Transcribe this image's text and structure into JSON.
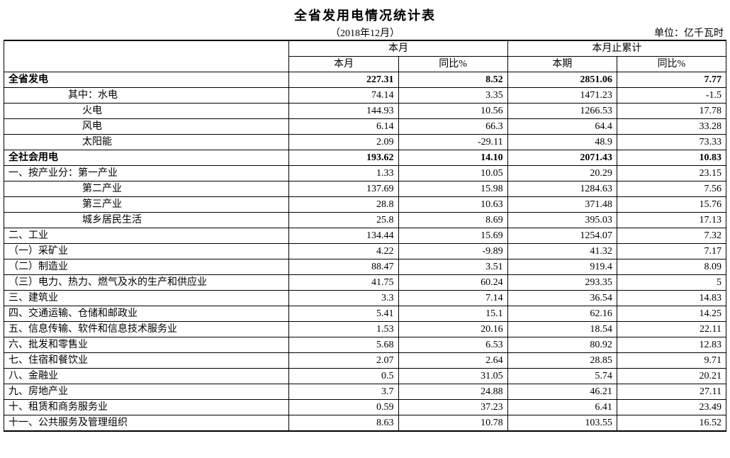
{
  "title": "全省发用电情况统计表",
  "date": "（2018年12月）",
  "unit": "单位：亿千瓦时",
  "headers": {
    "blank": "",
    "group1": "本月",
    "group2": "本月止累计",
    "c1": "本月",
    "c2": "同比%",
    "c3": "本期",
    "c4": "同比%"
  },
  "rows": [
    {
      "label": "全省发电",
      "cls": "bold",
      "indent": "",
      "v": [
        "227.31",
        "8.52",
        "2851.06",
        "7.77"
      ],
      "bv": [
        true,
        true,
        true,
        true
      ]
    },
    {
      "label": "其中：水电",
      "indent": "indent1",
      "v": [
        "74.14",
        "3.35",
        "1471.23",
        "-1.5"
      ]
    },
    {
      "label": "火电",
      "indent": "indent2",
      "v": [
        "144.93",
        "10.56",
        "1266.53",
        "17.78"
      ]
    },
    {
      "label": "风电",
      "indent": "indent2",
      "v": [
        "6.14",
        "66.3",
        "64.4",
        "33.28"
      ]
    },
    {
      "label": "太阳能",
      "indent": "indent2",
      "v": [
        "2.09",
        "-29.11",
        "48.9",
        "73.33"
      ]
    },
    {
      "label": "全社会用电",
      "cls": "bold",
      "indent": "",
      "v": [
        "193.62",
        "14.10",
        "2071.43",
        "10.83"
      ],
      "bv": [
        true,
        true,
        true,
        true
      ]
    },
    {
      "label": "一、按产业分：第一产业",
      "indent": "",
      "v": [
        "1.33",
        "10.05",
        "20.29",
        "23.15"
      ]
    },
    {
      "label": "第二产业",
      "indent": "indent2",
      "v": [
        "137.69",
        "15.98",
        "1284.63",
        "7.56"
      ]
    },
    {
      "label": "第三产业",
      "indent": "indent2",
      "v": [
        "28.8",
        "10.63",
        "371.48",
        "15.76"
      ]
    },
    {
      "label": "城乡居民生活",
      "indent": "indent2",
      "v": [
        "25.8",
        "8.69",
        "395.03",
        "17.13"
      ]
    },
    {
      "label": "二、工业",
      "indent": "",
      "v": [
        "134.44",
        "15.69",
        "1254.07",
        "7.32"
      ]
    },
    {
      "label": "（一）采矿业",
      "indent": "",
      "v": [
        "4.22",
        "-9.89",
        "41.32",
        "7.17"
      ]
    },
    {
      "label": "（二）制造业",
      "indent": "",
      "v": [
        "88.47",
        "3.51",
        "919.4",
        "8.09"
      ]
    },
    {
      "label": "（三）电力、热力、燃气及水的生产和供应业",
      "indent": "",
      "v": [
        "41.75",
        "60.24",
        "293.35",
        "5"
      ]
    },
    {
      "label": "三、建筑业",
      "indent": "",
      "v": [
        "3.3",
        "7.14",
        "36.54",
        "14.83"
      ]
    },
    {
      "label": "四、交通运输、仓储和邮政业",
      "indent": "",
      "v": [
        "5.41",
        "15.1",
        "62.16",
        "14.25"
      ]
    },
    {
      "label": "五、信息传输、软件和信息技术服务业",
      "indent": "",
      "v": [
        "1.53",
        "20.16",
        "18.54",
        "22.11"
      ]
    },
    {
      "label": "六、批发和零售业",
      "indent": "",
      "v": [
        "5.68",
        "6.53",
        "80.92",
        "12.83"
      ]
    },
    {
      "label": "七、住宿和餐饮业",
      "indent": "",
      "v": [
        "2.07",
        "2.64",
        "28.85",
        "9.71"
      ]
    },
    {
      "label": "八、金融业",
      "indent": "",
      "v": [
        "0.5",
        "31.05",
        "5.74",
        "20.21"
      ]
    },
    {
      "label": "九、房地产业",
      "indent": "",
      "v": [
        "3.7",
        "24.88",
        "46.21",
        "27.11"
      ]
    },
    {
      "label": "十、租赁和商务服务业",
      "indent": "",
      "v": [
        "0.59",
        "37.23",
        "6.41",
        "23.49"
      ]
    },
    {
      "label": "十一、公共服务及管理组织",
      "indent": "",
      "v": [
        "8.63",
        "10.78",
        "103.55",
        "16.52"
      ]
    }
  ]
}
